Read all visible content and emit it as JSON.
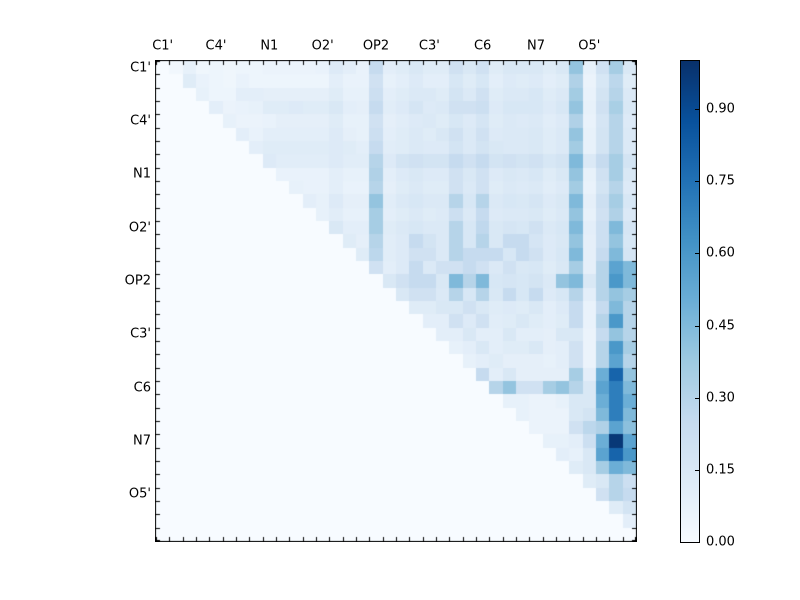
{
  "axes": {
    "x_labels": [
      "C1'",
      "C4'",
      "N1",
      "O2'",
      "OP2",
      "C3'",
      "C6",
      "N7",
      "O5'"
    ],
    "y_labels": [
      "C1'",
      "C4'",
      "N1",
      "O2'",
      "OP2",
      "C3'",
      "C6",
      "N7",
      "O5'"
    ]
  },
  "colorbar": {
    "ticks": [
      "0.00",
      "0.15",
      "0.30",
      "0.45",
      "0.60",
      "0.75",
      "0.90"
    ],
    "tick_values": [
      0.0,
      0.15,
      0.3,
      0.45,
      0.6,
      0.75,
      0.9
    ],
    "vmin": 0.0,
    "vmax": 1.0
  },
  "chart_data": {
    "type": "heatmap",
    "title": "",
    "xlabel": "",
    "ylabel": "",
    "matrix_shape": [
      36,
      36
    ],
    "triangle": "upper",
    "cells_per_group": 4,
    "group_labels": [
      "C1'",
      "C4'",
      "N1",
      "O2'",
      "OP2",
      "C3'",
      "C6",
      "N7",
      "O5'"
    ],
    "colormap": "Blues",
    "colormap_stops": [
      {
        "pos": 0.0,
        "color": "#f7fbff"
      },
      {
        "pos": 0.125,
        "color": "#deebf7"
      },
      {
        "pos": 0.25,
        "color": "#c6dbef"
      },
      {
        "pos": 0.375,
        "color": "#9ecae1"
      },
      {
        "pos": 0.5,
        "color": "#6baed6"
      },
      {
        "pos": 0.625,
        "color": "#4292c6"
      },
      {
        "pos": 0.75,
        "color": "#2171b5"
      },
      {
        "pos": 0.875,
        "color": "#08519c"
      },
      {
        "pos": 1.0,
        "color": "#08306b"
      }
    ],
    "frame_color": "#000000",
    "values": [
      [
        0,
        0.03,
        0.08,
        0.04,
        0.05,
        0.04,
        0.05,
        0.05,
        0.06,
        0.06,
        0.06,
        0.06,
        0.07,
        0.13,
        0.1,
        0.07,
        0.25,
        0.1,
        0.12,
        0.15,
        0.12,
        0.12,
        0.2,
        0.15,
        0.2,
        0.12,
        0.15,
        0.15,
        0.15,
        0.12,
        0.15,
        0.4,
        0.08,
        0.2,
        0.35,
        0.15
      ],
      [
        0,
        0,
        0.12,
        0.07,
        0.05,
        0.04,
        0.07,
        0.05,
        0.05,
        0.05,
        0.05,
        0.05,
        0.05,
        0.1,
        0.07,
        0.07,
        0.2,
        0.08,
        0.1,
        0.13,
        0.1,
        0.1,
        0.16,
        0.12,
        0.16,
        0.1,
        0.13,
        0.12,
        0.13,
        0.1,
        0.12,
        0.32,
        0.06,
        0.16,
        0.28,
        0.12
      ],
      [
        0,
        0,
        0,
        0.08,
        0.05,
        0.05,
        0.1,
        0.1,
        0.09,
        0.09,
        0.09,
        0.09,
        0.09,
        0.12,
        0.08,
        0.08,
        0.22,
        0.1,
        0.12,
        0.14,
        0.14,
        0.12,
        0.18,
        0.14,
        0.2,
        0.12,
        0.14,
        0.14,
        0.16,
        0.12,
        0.14,
        0.36,
        0.07,
        0.18,
        0.3,
        0.14
      ],
      [
        0,
        0,
        0,
        0,
        0.1,
        0.06,
        0.07,
        0.08,
        0.12,
        0.12,
        0.13,
        0.12,
        0.12,
        0.15,
        0.1,
        0.09,
        0.25,
        0.11,
        0.13,
        0.17,
        0.13,
        0.14,
        0.2,
        0.2,
        0.22,
        0.13,
        0.16,
        0.16,
        0.16,
        0.13,
        0.16,
        0.4,
        0.08,
        0.2,
        0.34,
        0.15
      ],
      [
        0,
        0,
        0,
        0,
        0,
        0.08,
        0.06,
        0.06,
        0.07,
        0.09,
        0.09,
        0.09,
        0.09,
        0.12,
        0.08,
        0.08,
        0.2,
        0.09,
        0.11,
        0.13,
        0.14,
        0.12,
        0.16,
        0.13,
        0.17,
        0.12,
        0.14,
        0.13,
        0.14,
        0.11,
        0.13,
        0.32,
        0.07,
        0.17,
        0.3,
        0.13
      ],
      [
        0,
        0,
        0,
        0,
        0,
        0,
        0.1,
        0.07,
        0.1,
        0.1,
        0.1,
        0.1,
        0.1,
        0.13,
        0.09,
        0.08,
        0.22,
        0.1,
        0.12,
        0.14,
        0.12,
        0.15,
        0.2,
        0.14,
        0.2,
        0.13,
        0.14,
        0.14,
        0.15,
        0.12,
        0.14,
        0.4,
        0.08,
        0.18,
        0.3,
        0.14
      ],
      [
        0,
        0,
        0,
        0,
        0,
        0,
        0,
        0.1,
        0.12,
        0.12,
        0.12,
        0.12,
        0.12,
        0.13,
        0.12,
        0.1,
        0.25,
        0.11,
        0.12,
        0.14,
        0.13,
        0.13,
        0.18,
        0.14,
        0.18,
        0.15,
        0.14,
        0.14,
        0.15,
        0.12,
        0.14,
        0.36,
        0.08,
        0.18,
        0.3,
        0.14
      ],
      [
        0,
        0,
        0,
        0,
        0,
        0,
        0,
        0,
        0.13,
        0.11,
        0.11,
        0.11,
        0.11,
        0.13,
        0.11,
        0.11,
        0.3,
        0.13,
        0.18,
        0.2,
        0.18,
        0.18,
        0.25,
        0.2,
        0.25,
        0.18,
        0.2,
        0.18,
        0.2,
        0.16,
        0.18,
        0.45,
        0.14,
        0.25,
        0.35,
        0.18
      ],
      [
        0,
        0,
        0,
        0,
        0,
        0,
        0,
        0,
        0,
        0.07,
        0.07,
        0.07,
        0.07,
        0.1,
        0.08,
        0.08,
        0.32,
        0.1,
        0.13,
        0.15,
        0.13,
        0.13,
        0.2,
        0.15,
        0.2,
        0.13,
        0.15,
        0.14,
        0.16,
        0.12,
        0.15,
        0.4,
        0.08,
        0.2,
        0.35,
        0.15
      ],
      [
        0,
        0,
        0,
        0,
        0,
        0,
        0,
        0,
        0,
        0,
        0.08,
        0.07,
        0.07,
        0.1,
        0.07,
        0.07,
        0.3,
        0.09,
        0.12,
        0.14,
        0.12,
        0.12,
        0.2,
        0.14,
        0.2,
        0.12,
        0.14,
        0.13,
        0.14,
        0.11,
        0.13,
        0.36,
        0.07,
        0.18,
        0.3,
        0.13
      ],
      [
        0,
        0,
        0,
        0,
        0,
        0,
        0,
        0,
        0,
        0,
        0,
        0.1,
        0.08,
        0.13,
        0.09,
        0.09,
        0.4,
        0.11,
        0.14,
        0.16,
        0.14,
        0.14,
        0.3,
        0.16,
        0.3,
        0.14,
        0.16,
        0.15,
        0.17,
        0.13,
        0.15,
        0.45,
        0.09,
        0.22,
        0.35,
        0.16
      ],
      [
        0,
        0,
        0,
        0,
        0,
        0,
        0,
        0,
        0,
        0,
        0,
        0,
        0.08,
        0.11,
        0.08,
        0.08,
        0.35,
        0.1,
        0.12,
        0.14,
        0.12,
        0.13,
        0.22,
        0.14,
        0.25,
        0.13,
        0.14,
        0.14,
        0.15,
        0.12,
        0.14,
        0.4,
        0.08,
        0.2,
        0.32,
        0.14
      ],
      [
        0,
        0,
        0,
        0,
        0,
        0,
        0,
        0,
        0,
        0,
        0,
        0,
        0,
        0.15,
        0.1,
        0.1,
        0.35,
        0.12,
        0.14,
        0.16,
        0.14,
        0.14,
        0.3,
        0.16,
        0.27,
        0.15,
        0.17,
        0.16,
        0.2,
        0.14,
        0.16,
        0.45,
        0.1,
        0.22,
        0.45,
        0.17
      ],
      [
        0,
        0,
        0,
        0,
        0,
        0,
        0,
        0,
        0,
        0,
        0,
        0,
        0,
        0,
        0.12,
        0.09,
        0.3,
        0.11,
        0.13,
        0.25,
        0.18,
        0.14,
        0.3,
        0.16,
        0.3,
        0.15,
        0.25,
        0.25,
        0.17,
        0.13,
        0.15,
        0.4,
        0.09,
        0.22,
        0.4,
        0.16
      ],
      [
        0,
        0,
        0,
        0,
        0,
        0,
        0,
        0,
        0,
        0,
        0,
        0,
        0,
        0,
        0,
        0.12,
        0.28,
        0.11,
        0.13,
        0.2,
        0.2,
        0.14,
        0.3,
        0.25,
        0.25,
        0.25,
        0.16,
        0.25,
        0.2,
        0.13,
        0.16,
        0.45,
        0.09,
        0.25,
        0.45,
        0.17
      ],
      [
        0,
        0,
        0,
        0,
        0,
        0,
        0,
        0,
        0,
        0,
        0,
        0,
        0,
        0,
        0,
        0,
        0.2,
        0.1,
        0.13,
        0.25,
        0.14,
        0.2,
        0.2,
        0.25,
        0.2,
        0.14,
        0.2,
        0.15,
        0.16,
        0.12,
        0.15,
        0.35,
        0.09,
        0.3,
        0.55,
        0.45
      ],
      [
        0,
        0,
        0,
        0,
        0,
        0,
        0,
        0,
        0,
        0,
        0,
        0,
        0,
        0,
        0,
        0,
        0,
        0.15,
        0.2,
        0.25,
        0.25,
        0.15,
        0.45,
        0.3,
        0.45,
        0.16,
        0.17,
        0.16,
        0.18,
        0.14,
        0.4,
        0.45,
        0.15,
        0.3,
        0.6,
        0.45
      ],
      [
        0,
        0,
        0,
        0,
        0,
        0,
        0,
        0,
        0,
        0,
        0,
        0,
        0,
        0,
        0,
        0,
        0,
        0,
        0.15,
        0.2,
        0.2,
        0.14,
        0.3,
        0.16,
        0.3,
        0.15,
        0.25,
        0.16,
        0.25,
        0.13,
        0.16,
        0.3,
        0.1,
        0.3,
        0.4,
        0.35
      ],
      [
        0,
        0,
        0,
        0,
        0,
        0,
        0,
        0,
        0,
        0,
        0,
        0,
        0,
        0,
        0,
        0,
        0,
        0,
        0,
        0.12,
        0.12,
        0.15,
        0.15,
        0.2,
        0.15,
        0.12,
        0.13,
        0.12,
        0.15,
        0.1,
        0.13,
        0.25,
        0.07,
        0.25,
        0.45,
        0.3
      ],
      [
        0,
        0,
        0,
        0,
        0,
        0,
        0,
        0,
        0,
        0,
        0,
        0,
        0,
        0,
        0,
        0,
        0,
        0,
        0,
        0,
        0.1,
        0.1,
        0.2,
        0.13,
        0.2,
        0.11,
        0.12,
        0.15,
        0.12,
        0.1,
        0.12,
        0.25,
        0.07,
        0.3,
        0.6,
        0.3
      ],
      [
        0,
        0,
        0,
        0,
        0,
        0,
        0,
        0,
        0,
        0,
        0,
        0,
        0,
        0,
        0,
        0,
        0,
        0,
        0,
        0,
        0,
        0.1,
        0.1,
        0.15,
        0.1,
        0.1,
        0.15,
        0.1,
        0.1,
        0.09,
        0.15,
        0.15,
        0.06,
        0.25,
        0.4,
        0.3
      ],
      [
        0,
        0,
        0,
        0,
        0,
        0,
        0,
        0,
        0,
        0,
        0,
        0,
        0,
        0,
        0,
        0,
        0,
        0,
        0,
        0,
        0,
        0,
        0.08,
        0.1,
        0.15,
        0.1,
        0.12,
        0.12,
        0.15,
        0.09,
        0.1,
        0.2,
        0.06,
        0.3,
        0.6,
        0.35
      ],
      [
        0,
        0,
        0,
        0,
        0,
        0,
        0,
        0,
        0,
        0,
        0,
        0,
        0,
        0,
        0,
        0,
        0,
        0,
        0,
        0,
        0,
        0,
        0,
        0.08,
        0.1,
        0.12,
        0.09,
        0.09,
        0.09,
        0.08,
        0.1,
        0.2,
        0.06,
        0.3,
        0.55,
        0.3
      ],
      [
        0,
        0,
        0,
        0,
        0,
        0,
        0,
        0,
        0,
        0,
        0,
        0,
        0,
        0,
        0,
        0,
        0,
        0,
        0,
        0,
        0,
        0,
        0,
        0,
        0.25,
        0.1,
        0.15,
        0.09,
        0.09,
        0.09,
        0.09,
        0.35,
        0.1,
        0.5,
        0.8,
        0.4
      ],
      [
        0,
        0,
        0,
        0,
        0,
        0,
        0,
        0,
        0,
        0,
        0,
        0,
        0,
        0,
        0,
        0,
        0,
        0,
        0,
        0,
        0,
        0,
        0,
        0,
        0,
        0.3,
        0.4,
        0.2,
        0.2,
        0.35,
        0.4,
        0.3,
        0.15,
        0.55,
        0.7,
        0.45
      ],
      [
        0,
        0,
        0,
        0,
        0,
        0,
        0,
        0,
        0,
        0,
        0,
        0,
        0,
        0,
        0,
        0,
        0,
        0,
        0,
        0,
        0,
        0,
        0,
        0,
        0,
        0,
        0.08,
        0.08,
        0.06,
        0.06,
        0.08,
        0.15,
        0.15,
        0.5,
        0.7,
        0.5
      ],
      [
        0,
        0,
        0,
        0,
        0,
        0,
        0,
        0,
        0,
        0,
        0,
        0,
        0,
        0,
        0,
        0,
        0,
        0,
        0,
        0,
        0,
        0,
        0,
        0,
        0,
        0,
        0,
        0.08,
        0.06,
        0.06,
        0.06,
        0.15,
        0.18,
        0.45,
        0.7,
        0.45
      ],
      [
        0,
        0,
        0,
        0,
        0,
        0,
        0,
        0,
        0,
        0,
        0,
        0,
        0,
        0,
        0,
        0,
        0,
        0,
        0,
        0,
        0,
        0,
        0,
        0,
        0,
        0,
        0,
        0,
        0.06,
        0.06,
        0.06,
        0.2,
        0.28,
        0.32,
        0.55,
        0.42
      ],
      [
        0,
        0,
        0,
        0,
        0,
        0,
        0,
        0,
        0,
        0,
        0,
        0,
        0,
        0,
        0,
        0,
        0,
        0,
        0,
        0,
        0,
        0,
        0,
        0,
        0,
        0,
        0,
        0,
        0,
        0.08,
        0.08,
        0.1,
        0.22,
        0.5,
        0.97,
        0.55
      ],
      [
        0,
        0,
        0,
        0,
        0,
        0,
        0,
        0,
        0,
        0,
        0,
        0,
        0,
        0,
        0,
        0,
        0,
        0,
        0,
        0,
        0,
        0,
        0,
        0,
        0,
        0,
        0,
        0,
        0,
        0,
        0.1,
        0.08,
        0.15,
        0.55,
        0.8,
        0.6
      ],
      [
        0,
        0,
        0,
        0,
        0,
        0,
        0,
        0,
        0,
        0,
        0,
        0,
        0,
        0,
        0,
        0,
        0,
        0,
        0,
        0,
        0,
        0,
        0,
        0,
        0,
        0,
        0,
        0,
        0,
        0,
        0,
        0.12,
        0.15,
        0.35,
        0.5,
        0.45
      ],
      [
        0,
        0,
        0,
        0,
        0,
        0,
        0,
        0,
        0,
        0,
        0,
        0,
        0,
        0,
        0,
        0,
        0,
        0,
        0,
        0,
        0,
        0,
        0,
        0,
        0,
        0,
        0,
        0,
        0,
        0,
        0,
        0,
        0.12,
        0.15,
        0.3,
        0.22
      ],
      [
        0,
        0,
        0,
        0,
        0,
        0,
        0,
        0,
        0,
        0,
        0,
        0,
        0,
        0,
        0,
        0,
        0,
        0,
        0,
        0,
        0,
        0,
        0,
        0,
        0,
        0,
        0,
        0,
        0,
        0,
        0,
        0,
        0,
        0.2,
        0.3,
        0.25
      ],
      [
        0,
        0,
        0,
        0,
        0,
        0,
        0,
        0,
        0,
        0,
        0,
        0,
        0,
        0,
        0,
        0,
        0,
        0,
        0,
        0,
        0,
        0,
        0,
        0,
        0,
        0,
        0,
        0,
        0,
        0,
        0,
        0,
        0,
        0,
        0.12,
        0.18
      ],
      [
        0,
        0,
        0,
        0,
        0,
        0,
        0,
        0,
        0,
        0,
        0,
        0,
        0,
        0,
        0,
        0,
        0,
        0,
        0,
        0,
        0,
        0,
        0,
        0,
        0,
        0,
        0,
        0,
        0,
        0,
        0,
        0,
        0,
        0,
        0,
        0.1
      ],
      [
        0,
        0,
        0,
        0,
        0,
        0,
        0,
        0,
        0,
        0,
        0,
        0,
        0,
        0,
        0,
        0,
        0,
        0,
        0,
        0,
        0,
        0,
        0,
        0,
        0,
        0,
        0,
        0,
        0,
        0,
        0,
        0,
        0,
        0,
        0,
        0
      ]
    ]
  }
}
